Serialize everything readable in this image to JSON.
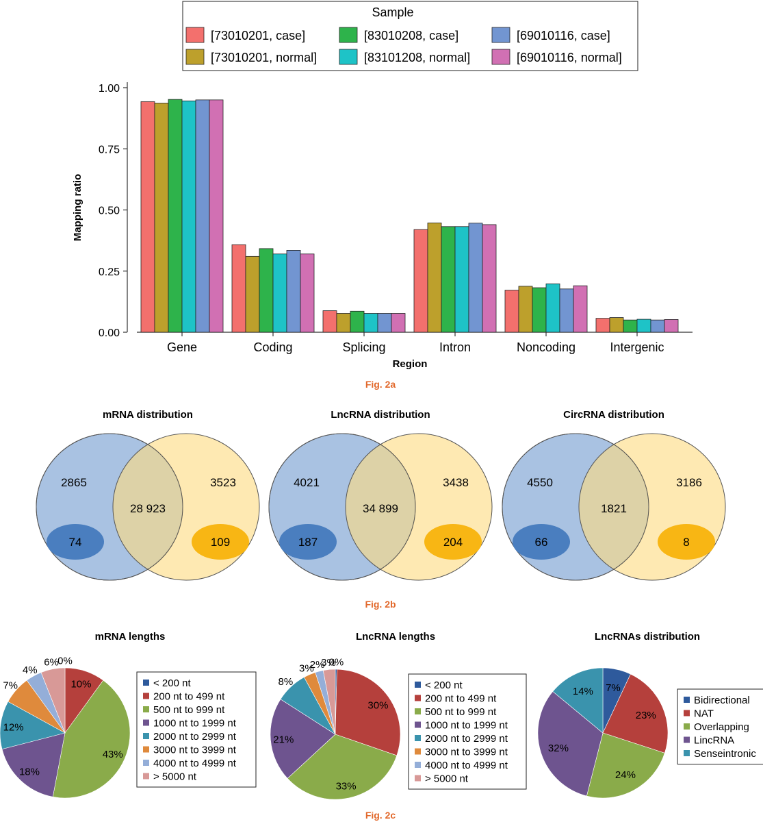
{
  "figure_captions": {
    "a": "Fig. 2a",
    "b": "Fig. 2b",
    "c": "Fig. 2c"
  },
  "caption_color": "#e2692c",
  "chart_data": [
    {
      "id": "fig2a",
      "type": "bar",
      "xlabel": "Region",
      "ylabel": "Mapping ratio",
      "ylim": [
        0,
        1
      ],
      "yticks": [
        "0.00",
        "0.25",
        "0.50",
        "0.75",
        "1.00"
      ],
      "grid": false,
      "legend": {
        "title": "Sample",
        "placement": "top"
      },
      "categories": [
        "Gene",
        "Coding",
        "Splicing",
        "Intron",
        "Noncoding",
        "Intergenic"
      ],
      "series": [
        {
          "name": "[73010201, case]",
          "color": "#f3706d",
          "values": [
            0.943,
            0.358,
            0.088,
            0.42,
            0.172,
            0.057
          ]
        },
        {
          "name": "[73010201, normal]",
          "color": "#bda02c",
          "values": [
            0.937,
            0.31,
            0.077,
            0.447,
            0.188,
            0.06
          ]
        },
        {
          "name": "[83010208, case]",
          "color": "#2eb34b",
          "values": [
            0.952,
            0.342,
            0.086,
            0.432,
            0.182,
            0.05
          ]
        },
        {
          "name": "[83101208, normal]",
          "color": "#1ec3c7",
          "values": [
            0.946,
            0.32,
            0.077,
            0.432,
            0.198,
            0.053
          ]
        },
        {
          "name": "[69010116, case]",
          "color": "#7295d1",
          "values": [
            0.95,
            0.335,
            0.077,
            0.446,
            0.177,
            0.05
          ]
        },
        {
          "name": "[69010116, normal]",
          "color": "#d170b3",
          "values": [
            0.95,
            0.32,
            0.077,
            0.44,
            0.19,
            0.052
          ]
        }
      ]
    },
    {
      "id": "fig2b",
      "type": "venn",
      "colors": {
        "left": "#a9c2e2",
        "right": "#fddc82",
        "left_inner": "#4a7ebf",
        "right_inner": "#f8b614",
        "stroke": "#555555"
      },
      "diagrams": [
        {
          "title": "mRNA distribution",
          "left": "2865",
          "overlap": "28 923",
          "right": "3523",
          "left_inner": "74",
          "right_inner": "109"
        },
        {
          "title": "LncRNA distribution",
          "left": "4021",
          "overlap": "34 899",
          "right": "3438",
          "left_inner": "187",
          "right_inner": "204"
        },
        {
          "title": "CircRNA distribution",
          "left": "4550",
          "overlap": "1821",
          "right": "3186",
          "left_inner": "66",
          "right_inner": "8"
        }
      ]
    },
    {
      "id": "fig2c-mrna",
      "type": "pie",
      "title": "mRNA lengths",
      "legend": {
        "placement": "right"
      },
      "slices": [
        {
          "label": "< 200 nt",
          "value": 0,
          "text": "0%",
          "color": "#2e5a9c"
        },
        {
          "label": "200 nt to 499 nt",
          "value": 10,
          "text": "10%",
          "color": "#b5403c"
        },
        {
          "label": "500 nt to 999 nt",
          "value": 43,
          "text": "43%",
          "color": "#8aab4a"
        },
        {
          "label": "1000 nt to 1999 nt",
          "value": 18,
          "text": "18%",
          "color": "#6e548f"
        },
        {
          "label": "2000 nt to 2999 nt",
          "value": 12,
          "text": "12%",
          "color": "#3a93ad"
        },
        {
          "label": "3000 nt to 3999 nt",
          "value": 7,
          "text": "7%",
          "color": "#df8a3c"
        },
        {
          "label": "4000 nt to 4999 nt",
          "value": 4,
          "text": "4%",
          "color": "#94aed8"
        },
        {
          "label": "> 5000 nt",
          "value": 6,
          "text": "6%",
          "color": "#d89997"
        }
      ]
    },
    {
      "id": "fig2c-lncrna",
      "type": "pie",
      "title": "LncRNA lengths",
      "legend": {
        "placement": "right"
      },
      "slices": [
        {
          "label": "< 200 nt",
          "value": 0.4,
          "text": "0%",
          "color": "#2e5a9c"
        },
        {
          "label": "200 nt to 499 nt",
          "value": 30,
          "text": "30%",
          "color": "#b5403c"
        },
        {
          "label": "500 nt to 999 nt",
          "value": 33,
          "text": "33%",
          "color": "#8aab4a"
        },
        {
          "label": "1000 nt to 1999 nt",
          "value": 21,
          "text": "21%",
          "color": "#6e548f"
        },
        {
          "label": "2000 nt to 2999 nt",
          "value": 8,
          "text": "8%",
          "color": "#3a93ad"
        },
        {
          "label": "3000 nt to 3999 nt",
          "value": 3,
          "text": "3%",
          "color": "#df8a3c"
        },
        {
          "label": "4000 nt to 4999 nt",
          "value": 2,
          "text": "2%",
          "color": "#94aed8"
        },
        {
          "label": "> 5000 nt",
          "value": 3,
          "text": "3%",
          "color": "#d89997"
        }
      ]
    },
    {
      "id": "fig2c-lncrnas",
      "type": "pie",
      "title": "LncRNAs distribution",
      "legend": {
        "placement": "right"
      },
      "slices": [
        {
          "label": "Bidirectional",
          "value": 7,
          "text": "7%",
          "color": "#2e5a9c"
        },
        {
          "label": "NAT",
          "value": 23,
          "text": "23%",
          "color": "#b5403c"
        },
        {
          "label": "Overlapping",
          "value": 24,
          "text": "24%",
          "color": "#8aab4a"
        },
        {
          "label": "LincRNA",
          "value": 32,
          "text": "32%",
          "color": "#6e548f"
        },
        {
          "label": "Senseintronic",
          "value": 14,
          "text": "14%",
          "color": "#3a93ad"
        }
      ]
    }
  ]
}
